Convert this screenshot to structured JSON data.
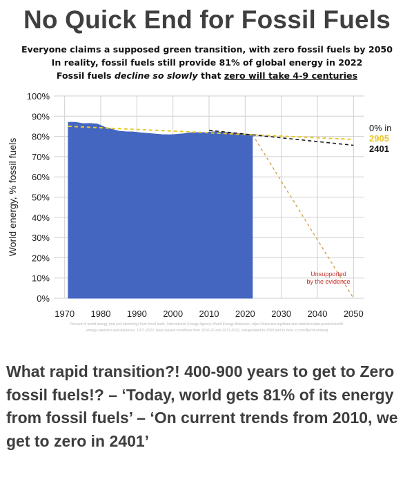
{
  "title": "No Quick End for Fossil Fuels",
  "subtitle": {
    "line1": "Everyone claims a supposed green transition, with zero fossil fuels by 2050",
    "line2": "In reality, fossil fuels still provide 81% of global energy in 2022",
    "line3_a": "Fossil fuels ",
    "line3_b": "decline so slowly",
    "line3_c": " that ",
    "line3_d": "zero will take 4-9 centuries"
  },
  "caption": "What rapid transition?! 400-900 years to get to Zero fossil fuels!? – ‘Today, world gets 81% of its energy from fossil fuels’ – ‘On current trends from 2010, we get to zero in 2401’",
  "colors": {
    "area": "#4466c0",
    "trend_2010": "#1a1a1a",
    "trend_1971": "#e8c830",
    "unsupported": "#d8a048",
    "unsupported_text": "#c0302a"
  },
  "chart_data": {
    "type": "area",
    "ylabel": "World energy, % fossil fuels",
    "xlim": [
      1967,
      2053
    ],
    "ylim": [
      0,
      100
    ],
    "x_ticks": [
      1970,
      1980,
      1990,
      2000,
      2010,
      2020,
      2030,
      2040,
      2050
    ],
    "y_ticks": [
      0,
      10,
      20,
      30,
      40,
      50,
      60,
      70,
      80,
      90,
      100
    ],
    "y_tick_labels": [
      "0%",
      "10%",
      "20%",
      "30%",
      "40%",
      "50%",
      "60%",
      "70%",
      "80%",
      "90%",
      "100%"
    ],
    "grid": true,
    "series": [
      {
        "type": "area",
        "x": [
          1971,
          1973,
          1975,
          1977,
          1979,
          1981,
          1983,
          1985,
          1987,
          1989,
          1991,
          1993,
          1995,
          1997,
          1999,
          2001,
          2003,
          2005,
          2007,
          2009,
          2011,
          2013,
          2015,
          2017,
          2019,
          2021,
          2022
        ],
        "y": [
          87.0,
          87.0,
          86.3,
          86.4,
          86.2,
          84.6,
          83.6,
          82.6,
          82.3,
          82.2,
          81.8,
          81.5,
          81.2,
          80.9,
          80.8,
          81.0,
          81.3,
          81.8,
          81.9,
          81.9,
          82.3,
          82.1,
          81.9,
          81.6,
          81.2,
          81.0,
          81.0
        ]
      },
      {
        "type": "line",
        "style": "dashed",
        "x": [
          1971,
          2050
        ],
        "y": [
          85.0,
          78.5
        ]
      },
      {
        "type": "line",
        "style": "dashed",
        "x": [
          2010,
          2050
        ],
        "y": [
          83.0,
          75.6
        ]
      },
      {
        "type": "line",
        "style": "dashed",
        "x": [
          2022,
          2050
        ],
        "y": [
          81.0,
          0
        ]
      }
    ],
    "annotations": [
      {
        "lines": [
          "0% in"
        ]
      },
      {
        "lines": [
          "2905"
        ]
      },
      {
        "lines": [
          "2401"
        ]
      },
      {
        "lines": [
          "Unsupported",
          "by the evidence"
        ]
      }
    ],
    "source_note": [
      "Percent of world energy (not just electricity) from fossil fuels, International Energy Agency World Energy Balances, https://www.iea.org/data-and-statistics/data-product/world-",
      "energy-statistics-and-balances, 1971-2022, least-square trendlines from 2010-22 and 1971-2022, extrapolated to 2050 and to zero, x.com/BjornLomborg"
    ]
  }
}
